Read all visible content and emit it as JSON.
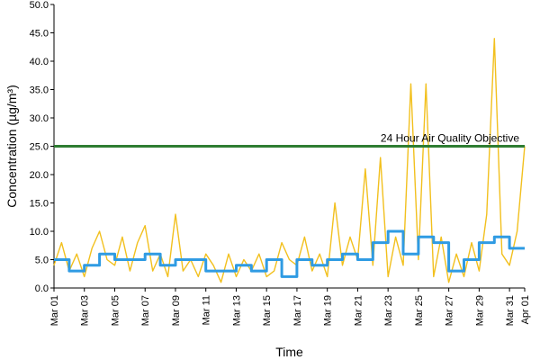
{
  "chart_data": {
    "type": "line",
    "title": "",
    "xlabel": "Time",
    "ylabel": "Concentration (µg/m³)",
    "ylim": [
      0,
      50
    ],
    "xlim": [
      "2024-03-01",
      "2024-04-01"
    ],
    "yticks": [
      "0.0",
      "5.0",
      "10.0",
      "15.0",
      "20.0",
      "25.0",
      "30.0",
      "35.0",
      "40.0",
      "45.0",
      "50.0"
    ],
    "xticks": [
      {
        "date": "2024-03-01",
        "label": "Mar 01"
      },
      {
        "date": "2024-03-03",
        "label": "Mar 03"
      },
      {
        "date": "2024-03-05",
        "label": "Mar 05"
      },
      {
        "date": "2024-03-07",
        "label": "Mar 07"
      },
      {
        "date": "2024-03-09",
        "label": "Mar 09"
      },
      {
        "date": "2024-03-11",
        "label": "Mar 11"
      },
      {
        "date": "2024-03-13",
        "label": "Mar 13"
      },
      {
        "date": "2024-03-15",
        "label": "Mar 15"
      },
      {
        "date": "2024-03-17",
        "label": "Mar 17"
      },
      {
        "date": "2024-03-19",
        "label": "Mar 19"
      },
      {
        "date": "2024-03-21",
        "label": "Mar 21"
      },
      {
        "date": "2024-03-23",
        "label": "Mar 23"
      },
      {
        "date": "2024-03-25",
        "label": "Mar 25"
      },
      {
        "date": "2024-03-27",
        "label": "Mar 27"
      },
      {
        "date": "2024-03-29",
        "label": "Mar 29"
      },
      {
        "date": "2024-03-31",
        "label": "Mar 31"
      },
      {
        "date": "2024-04-01",
        "label": "Apr 01"
      }
    ],
    "reference_line": {
      "value": 25,
      "label": "24 Hour Air Quality Objective",
      "color": "#2e7d32"
    },
    "grid": false,
    "legend": "none",
    "series": [
      {
        "style": "hourly",
        "color": "#f2c01e",
        "x": [
          "2024-03-01",
          "2024-03-01 12:00",
          "2024-03-02",
          "2024-03-02 12:00",
          "2024-03-03",
          "2024-03-03 12:00",
          "2024-03-04",
          "2024-03-04 12:00",
          "2024-03-05",
          "2024-03-05 12:00",
          "2024-03-06",
          "2024-03-06 12:00",
          "2024-03-07",
          "2024-03-07 12:00",
          "2024-03-08",
          "2024-03-08 12:00",
          "2024-03-09",
          "2024-03-09 12:00",
          "2024-03-10",
          "2024-03-10 12:00",
          "2024-03-11",
          "2024-03-11 12:00",
          "2024-03-12",
          "2024-03-12 12:00",
          "2024-03-13",
          "2024-03-13 12:00",
          "2024-03-14",
          "2024-03-14 12:00",
          "2024-03-15",
          "2024-03-15 12:00",
          "2024-03-16",
          "2024-03-16 12:00",
          "2024-03-17",
          "2024-03-17 12:00",
          "2024-03-18",
          "2024-03-18 12:00",
          "2024-03-19",
          "2024-03-19 12:00",
          "2024-03-20",
          "2024-03-20 12:00",
          "2024-03-21",
          "2024-03-21 12:00",
          "2024-03-22",
          "2024-03-22 12:00",
          "2024-03-23",
          "2024-03-23 12:00",
          "2024-03-24",
          "2024-03-24 12:00",
          "2024-03-25",
          "2024-03-25 12:00",
          "2024-03-26",
          "2024-03-26 12:00",
          "2024-03-27",
          "2024-03-27 12:00",
          "2024-03-28",
          "2024-03-28 12:00",
          "2024-03-29",
          "2024-03-29 12:00",
          "2024-03-30",
          "2024-03-30 12:00",
          "2024-03-31",
          "2024-03-31 12:00",
          "2024-04-01"
        ],
        "values": [
          4,
          8,
          3,
          6,
          2,
          7,
          10,
          5,
          4,
          9,
          3,
          8,
          11,
          3,
          6,
          2,
          13,
          3,
          5,
          2,
          6,
          4,
          1,
          6,
          2,
          5,
          3,
          6,
          2,
          3,
          8,
          5,
          4,
          9,
          3,
          6,
          2,
          15,
          4,
          9,
          5,
          21,
          4,
          23,
          2,
          9,
          4,
          36,
          5,
          36,
          2,
          9,
          1,
          6,
          2,
          8,
          3,
          13,
          44,
          6,
          4,
          10,
          25
        ]
      },
      {
        "style": "daily average",
        "color": "#2f9be3",
        "x": [
          "2024-03-01",
          "2024-03-02",
          "2024-03-03",
          "2024-03-04",
          "2024-03-05",
          "2024-03-06",
          "2024-03-07",
          "2024-03-08",
          "2024-03-09",
          "2024-03-10",
          "2024-03-11",
          "2024-03-12",
          "2024-03-13",
          "2024-03-14",
          "2024-03-15",
          "2024-03-16",
          "2024-03-17",
          "2024-03-18",
          "2024-03-19",
          "2024-03-20",
          "2024-03-21",
          "2024-03-22",
          "2024-03-23",
          "2024-03-24",
          "2024-03-25",
          "2024-03-26",
          "2024-03-27",
          "2024-03-28",
          "2024-03-29",
          "2024-03-30",
          "2024-03-31",
          "2024-04-01"
        ],
        "values": [
          5,
          3,
          4,
          6,
          5,
          5,
          6,
          4,
          5,
          5,
          3,
          3,
          4,
          3,
          5,
          2,
          5,
          4,
          5,
          6,
          5,
          8,
          10,
          6,
          9,
          8,
          3,
          5,
          8,
          9,
          7,
          7
        ]
      }
    ]
  }
}
